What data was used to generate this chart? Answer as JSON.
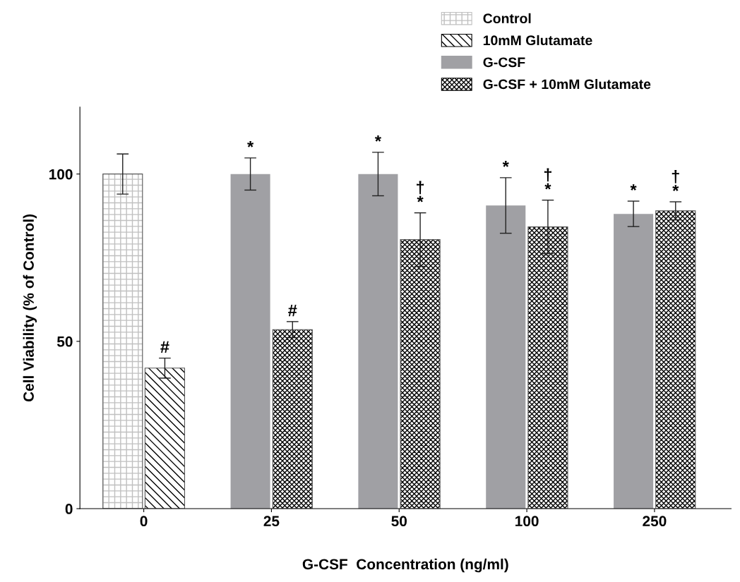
{
  "chart_data": {
    "type": "bar",
    "xlabel": "G-CSF  Concentration (ng/ml)",
    "ylabel": "Cell Viability (% of Control)",
    "categories": [
      "0",
      "25",
      "50",
      "100",
      "250"
    ],
    "series": [
      {
        "name": "Control",
        "color": "#c0c0c0",
        "values": [
          100,
          null,
          null,
          null,
          null
        ],
        "errors": [
          6,
          null,
          null,
          null,
          null
        ],
        "value_labels": [
          null,
          null,
          null,
          null,
          null
        ]
      },
      {
        "name": "10mM Glutamate",
        "color": "#000000",
        "values": [
          42,
          null,
          null,
          null,
          null
        ],
        "errors": [
          3,
          null,
          null,
          null,
          null
        ],
        "value_labels": [
          "#",
          null,
          null,
          null,
          null
        ]
      },
      {
        "name": "G-CSF",
        "color": "#a0a0a4",
        "values": [
          null,
          100,
          100,
          90.6,
          88.1
        ],
        "errors": [
          null,
          4.8,
          6.5,
          8.3,
          3.8
        ],
        "value_labels": [
          null,
          "*",
          "*",
          "*",
          "*"
        ]
      },
      {
        "name": "G-CSF + 10mM Glutamate",
        "color": "#000000",
        "values": [
          null,
          53.5,
          80.4,
          84.2,
          89
        ],
        "errors": [
          null,
          2.4,
          8,
          8,
          2.7
        ],
        "value_labels": [
          null,
          "#",
          "†\n*",
          "†\n*",
          "†\n*"
        ]
      }
    ],
    "ylim": [
      0,
      120
    ],
    "yticks": [
      0,
      50,
      100
    ],
    "grid": false,
    "legend": "top right"
  }
}
